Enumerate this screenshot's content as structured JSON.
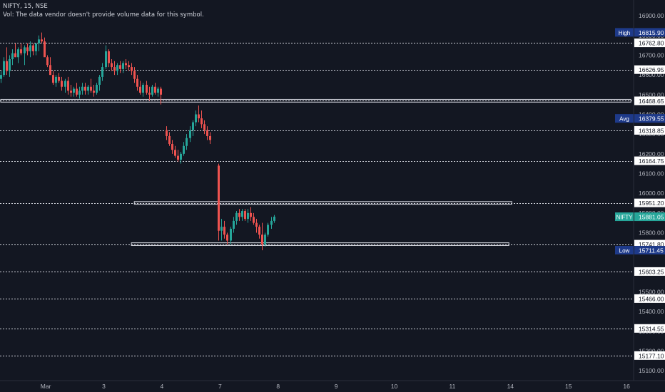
{
  "legend": {
    "symbol_line": "NIFTY, 15, NSE",
    "volume_note": "Vol: The data vendor doesn't provide volume data for this symbol."
  },
  "colors": {
    "background": "#131722",
    "up": "#26a69a",
    "down": "#ef5350",
    "level_line": "#d1d4dc",
    "label_bg": "#ffffff",
    "label_text": "#131722",
    "tag_bg": "#1e3a8a",
    "price_tag_bg": "#26a69a",
    "axis_text": "#b2b5be"
  },
  "chart_data": {
    "type": "candlestick",
    "ylim": [
      15050,
      16980
    ],
    "y_ticks": [
      {
        "value": 16900,
        "label": "16900.00"
      },
      {
        "value": 16800,
        "label": "16800.00"
      },
      {
        "value": 16700,
        "label": "16700.00"
      },
      {
        "value": 16600,
        "label": "16600.00"
      },
      {
        "value": 16500,
        "label": "16500.00"
      },
      {
        "value": 16400,
        "label": "16400.00"
      },
      {
        "value": 16300,
        "label": "16300.00"
      },
      {
        "value": 16200,
        "label": "16200.00"
      },
      {
        "value": 16100,
        "label": "16100.00"
      },
      {
        "value": 16000,
        "label": "16000.00"
      },
      {
        "value": 15900,
        "label": "15900.00"
      },
      {
        "value": 15800,
        "label": "15800.00"
      },
      {
        "value": 15700,
        "label": "15700.00"
      },
      {
        "value": 15600,
        "label": "15600.00"
      },
      {
        "value": 15500,
        "label": "15500.00"
      },
      {
        "value": 15400,
        "label": "15400.00"
      },
      {
        "value": 15300,
        "label": "15300.00"
      },
      {
        "value": 15200,
        "label": "15200.00"
      },
      {
        "value": 15100,
        "label": "15100.00"
      }
    ],
    "x_ticks": [
      {
        "index": 16,
        "label": "Mar"
      },
      {
        "index": 36,
        "label": "3"
      },
      {
        "index": 56,
        "label": "4"
      },
      {
        "index": 76,
        "label": "7"
      },
      {
        "index": 96,
        "label": "8"
      },
      {
        "index": 116,
        "label": "9"
      },
      {
        "index": 136,
        "label": "10"
      },
      {
        "index": 156,
        "label": "11"
      },
      {
        "index": 176,
        "label": "14"
      },
      {
        "index": 196,
        "label": "15"
      },
      {
        "index": 216,
        "label": "16"
      }
    ],
    "levels": [
      {
        "value": 16762.8,
        "label": "16762.80"
      },
      {
        "value": 16626.95,
        "label": "16626.95"
      },
      {
        "value": 16468.65,
        "label": "16468.65"
      },
      {
        "value": 16318.85,
        "label": "16318.85"
      },
      {
        "value": 16164.75,
        "label": "16164.75"
      },
      {
        "value": 15951.2,
        "label": "15951.20"
      },
      {
        "value": 15741.8,
        "label": "15741.80"
      },
      {
        "value": 15603.25,
        "label": "15603.25"
      },
      {
        "value": 15466.0,
        "label": "15466.00"
      },
      {
        "value": 15314.55,
        "label": "15314.55"
      },
      {
        "value": 15177.1,
        "label": "15177.10"
      }
    ],
    "zones": [
      {
        "from_index": 0,
        "to_index": 217,
        "low": 16462,
        "high": 16476
      },
      {
        "from_index": 46,
        "to_index": 176,
        "low": 15944,
        "high": 15958
      },
      {
        "from_index": 45,
        "to_index": 175,
        "low": 15735,
        "high": 15749
      }
    ],
    "tags": [
      {
        "name": "High",
        "value": 16815.9,
        "label": "16815.90"
      },
      {
        "name": "Avg",
        "value": 16379.55,
        "label": "16379.55"
      },
      {
        "name": "NIFTY",
        "value": 15881.05,
        "label": "15881.05",
        "current": true
      },
      {
        "name": "Low",
        "value": 15711.45,
        "label": "15711.45"
      }
    ],
    "candles": [
      [
        16580,
        16620,
        16560,
        16600
      ],
      [
        16600,
        16690,
        16590,
        16670
      ],
      [
        16670,
        16740,
        16600,
        16620
      ],
      [
        16620,
        16700,
        16590,
        16680
      ],
      [
        16680,
        16730,
        16650,
        16710
      ],
      [
        16710,
        16760,
        16690,
        16690
      ],
      [
        16690,
        16740,
        16660,
        16730
      ],
      [
        16730,
        16760,
        16700,
        16710
      ],
      [
        16710,
        16750,
        16650,
        16740
      ],
      [
        16740,
        16760,
        16700,
        16720
      ],
      [
        16720,
        16770,
        16690,
        16750
      ],
      [
        16750,
        16760,
        16700,
        16720
      ],
      [
        16720,
        16760,
        16700,
        16760
      ],
      [
        16760,
        16800,
        16720,
        16780
      ],
      [
        16780,
        16815,
        16760,
        16770
      ],
      [
        16770,
        16790,
        16740,
        16690
      ],
      [
        16690,
        16700,
        16640,
        16650
      ],
      [
        16650,
        16690,
        16600,
        16600
      ],
      [
        16600,
        16620,
        16550,
        16560
      ],
      [
        16560,
        16600,
        16540,
        16590
      ],
      [
        16590,
        16610,
        16560,
        16570
      ],
      [
        16570,
        16590,
        16520,
        16540
      ],
      [
        16540,
        16580,
        16510,
        16570
      ],
      [
        16570,
        16590,
        16500,
        16520
      ],
      [
        16520,
        16550,
        16490,
        16510
      ],
      [
        16510,
        16540,
        16490,
        16530
      ],
      [
        16530,
        16560,
        16490,
        16500
      ],
      [
        16500,
        16540,
        16480,
        16520
      ],
      [
        16520,
        16560,
        16500,
        16540
      ],
      [
        16540,
        16560,
        16500,
        16520
      ],
      [
        16520,
        16550,
        16500,
        16540
      ],
      [
        16540,
        16580,
        16510,
        16520
      ],
      [
        16520,
        16550,
        16490,
        16510
      ],
      [
        16510,
        16560,
        16500,
        16550
      ],
      [
        16550,
        16600,
        16520,
        16590
      ],
      [
        16590,
        16660,
        16570,
        16640
      ],
      [
        16640,
        16750,
        16630,
        16720
      ],
      [
        16720,
        16730,
        16640,
        16660
      ],
      [
        16660,
        16680,
        16620,
        16640
      ],
      [
        16640,
        16670,
        16600,
        16620
      ],
      [
        16620,
        16660,
        16600,
        16650
      ],
      [
        16650,
        16670,
        16610,
        16630
      ],
      [
        16630,
        16670,
        16610,
        16660
      ],
      [
        16660,
        16680,
        16630,
        16650
      ],
      [
        16650,
        16670,
        16620,
        16640
      ],
      [
        16640,
        16660,
        16600,
        16620
      ],
      [
        16620,
        16640,
        16560,
        16580
      ],
      [
        16580,
        16600,
        16520,
        16540
      ],
      [
        16540,
        16570,
        16500,
        16510
      ],
      [
        16510,
        16560,
        16490,
        16550
      ],
      [
        16550,
        16570,
        16500,
        16510
      ],
      [
        16510,
        16540,
        16470,
        16500
      ],
      [
        16500,
        16550,
        16490,
        16540
      ],
      [
        16540,
        16560,
        16500,
        16510
      ],
      [
        16510,
        16540,
        16490,
        16530
      ],
      [
        16530,
        16540,
        16450,
        16500
      ],
      [
        null,
        null,
        null,
        null
      ],
      [
        16320,
        16340,
        16270,
        16290
      ],
      [
        16290,
        16310,
        16240,
        16250
      ],
      [
        16250,
        16270,
        16200,
        16220
      ],
      [
        16220,
        16240,
        16180,
        16190
      ],
      [
        16190,
        16220,
        16160,
        16170
      ],
      [
        16170,
        16210,
        16150,
        16200
      ],
      [
        16200,
        16260,
        16190,
        16240
      ],
      [
        16240,
        16300,
        16220,
        16280
      ],
      [
        16280,
        16340,
        16260,
        16320
      ],
      [
        16320,
        16370,
        16290,
        16360
      ],
      [
        16360,
        16420,
        16340,
        16400
      ],
      [
        16400,
        16445,
        16360,
        16380
      ],
      [
        16380,
        16420,
        16330,
        16350
      ],
      [
        16350,
        16370,
        16300,
        16320
      ],
      [
        16320,
        16340,
        16270,
        16290
      ],
      [
        16290,
        16310,
        16250,
        16270
      ],
      [
        null,
        null,
        null,
        null
      ],
      [
        null,
        null,
        null,
        null
      ],
      [
        16140,
        16150,
        15760,
        15810
      ],
      [
        15810,
        15870,
        15760,
        15830
      ],
      [
        15830,
        15860,
        15770,
        15790
      ],
      [
        15790,
        15800,
        15740,
        15760
      ],
      [
        15760,
        15830,
        15741,
        15820
      ],
      [
        15820,
        15880,
        15800,
        15860
      ],
      [
        15860,
        15910,
        15840,
        15900
      ],
      [
        15900,
        15920,
        15860,
        15880
      ],
      [
        15880,
        15920,
        15860,
        15910
      ],
      [
        15910,
        15920,
        15860,
        15870
      ],
      [
        15870,
        15920,
        15850,
        15900
      ],
      [
        15900,
        15930,
        15860,
        15880
      ],
      [
        15880,
        15900,
        15840,
        15850
      ],
      [
        15850,
        15870,
        15800,
        15830
      ],
      [
        15830,
        15840,
        15770,
        15790
      ],
      [
        15790,
        15850,
        15711,
        15740
      ],
      [
        15740,
        15800,
        15730,
        15790
      ],
      [
        15790,
        15850,
        15780,
        15840
      ],
      [
        15840,
        15880,
        15820,
        15860
      ],
      [
        15860,
        15890,
        15850,
        15881
      ]
    ]
  }
}
